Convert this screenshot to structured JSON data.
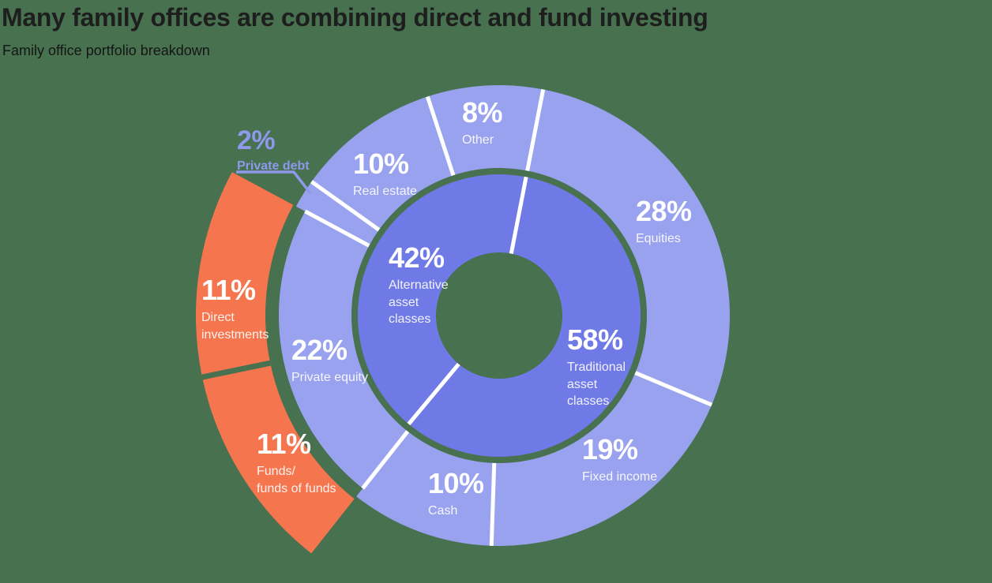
{
  "title": "Many family offices are combining direct and fund investing",
  "subtitle": "Family office portfolio breakdown",
  "colors": {
    "background": "#47714F",
    "outer_ring": "#99A2EE",
    "inner_ring": "#707AE6",
    "explode": "#F5764E",
    "divider": "#FFFFFF",
    "callout": "#8F99EB",
    "title_text": "#1E1E1E"
  },
  "chart_data": {
    "type": "pie",
    "subtype": "multi-ring donut with exploded breakdown",
    "title": "Many family offices are combining direct and fund investing",
    "subtitle": "Family office portfolio breakdown",
    "legend_position": "none",
    "inner_ring": {
      "segments": [
        {
          "label": "Traditional asset classes",
          "pct": "58%",
          "value": 58
        },
        {
          "label": "Alternative asset classes",
          "pct": "42%",
          "value": 42
        }
      ]
    },
    "outer_ring": {
      "segments": [
        {
          "label": "Equities",
          "pct": "28%",
          "value": 28
        },
        {
          "label": "Fixed income",
          "pct": "19%",
          "value": 19
        },
        {
          "label": "Cash",
          "pct": "10%",
          "value": 10
        },
        {
          "label": "Private equity",
          "pct": "22%",
          "value": 22
        },
        {
          "label": "Private debt",
          "pct": "2%",
          "value": 2
        },
        {
          "label": "Real estate",
          "pct": "10%",
          "value": 10
        },
        {
          "label": "Other",
          "pct": "8%",
          "value": 8
        }
      ]
    },
    "exploded_ring": {
      "parent": "Private equity",
      "segments": [
        {
          "label": "Funds/\nfunds of funds",
          "pct": "11%",
          "value": 11
        },
        {
          "label": "Direct investments",
          "pct": "11%",
          "value": 11
        }
      ]
    }
  }
}
